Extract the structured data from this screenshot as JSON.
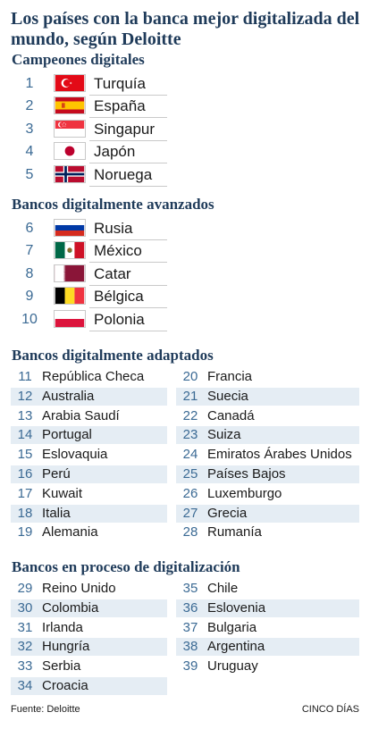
{
  "title": "Los países con la banca mejor digitalizada del mundo, según Deloitte",
  "sections": {
    "champions": "Campeones digitales",
    "advanced": "Bancos digitalmente avanzados",
    "adapted": "Bancos digitalmente adaptados",
    "process": "Bancos en proceso de digitalización"
  },
  "champions": [
    {
      "rank": "1",
      "country": "Turquía",
      "flag": "turkey-flag"
    },
    {
      "rank": "2",
      "country": "España",
      "flag": "spain-flag"
    },
    {
      "rank": "3",
      "country": "Singapur",
      "flag": "singapore-flag"
    },
    {
      "rank": "4",
      "country": "Japón",
      "flag": "japan-flag"
    },
    {
      "rank": "5",
      "country": "Noruega",
      "flag": "norway-flag"
    }
  ],
  "advanced": [
    {
      "rank": "6",
      "country": "Rusia",
      "flag": "russia-flag"
    },
    {
      "rank": "7",
      "country": "México",
      "flag": "mexico-flag"
    },
    {
      "rank": "8",
      "country": "Catar",
      "flag": "qatar-flag"
    },
    {
      "rank": "9",
      "country": "Bélgica",
      "flag": "belgium-flag"
    },
    {
      "rank": "10",
      "country": "Polonia",
      "flag": "poland-flag"
    }
  ],
  "adapted_left": [
    {
      "rank": "11",
      "country": "República Checa"
    },
    {
      "rank": "12",
      "country": "Australia"
    },
    {
      "rank": "13",
      "country": "Arabia Saudí"
    },
    {
      "rank": "14",
      "country": "Portugal"
    },
    {
      "rank": "15",
      "country": "Eslovaquia"
    },
    {
      "rank": "16",
      "country": "Perú"
    },
    {
      "rank": "17",
      "country": "Kuwait"
    },
    {
      "rank": "18",
      "country": "Italia"
    },
    {
      "rank": "19",
      "country": "Alemania"
    }
  ],
  "adapted_right": [
    {
      "rank": "20",
      "country": "Francia"
    },
    {
      "rank": "21",
      "country": "Suecia"
    },
    {
      "rank": "22",
      "country": "Canadá"
    },
    {
      "rank": "23",
      "country": "Suiza"
    },
    {
      "rank": "24",
      "country": "Emiratos Árabes Unidos"
    },
    {
      "rank": "25",
      "country": "Países Bajos"
    },
    {
      "rank": "26",
      "country": "Luxemburgo"
    },
    {
      "rank": "27",
      "country": "Grecia"
    },
    {
      "rank": "28",
      "country": "Rumanía"
    }
  ],
  "process_left": [
    {
      "rank": "29",
      "country": "Reino Unido"
    },
    {
      "rank": "30",
      "country": "Colombia"
    },
    {
      "rank": "31",
      "country": "Irlanda"
    },
    {
      "rank": "32",
      "country": "Hungría"
    },
    {
      "rank": "33",
      "country": "Serbia"
    },
    {
      "rank": "34",
      "country": "Croacia"
    }
  ],
  "process_right": [
    {
      "rank": "35",
      "country": "Chile"
    },
    {
      "rank": "36",
      "country": "Eslovenia"
    },
    {
      "rank": "37",
      "country": "Bulgaria"
    },
    {
      "rank": "38",
      "country": "Argentina"
    },
    {
      "rank": "39",
      "country": "Uruguay"
    }
  ],
  "footer": {
    "source": "Fuente: Deloitte",
    "brand": "CINCO DÍAS"
  },
  "colors": {
    "heading": "#1f3b5a",
    "number": "#3b6a94",
    "row_shade": "#e5edf4"
  }
}
